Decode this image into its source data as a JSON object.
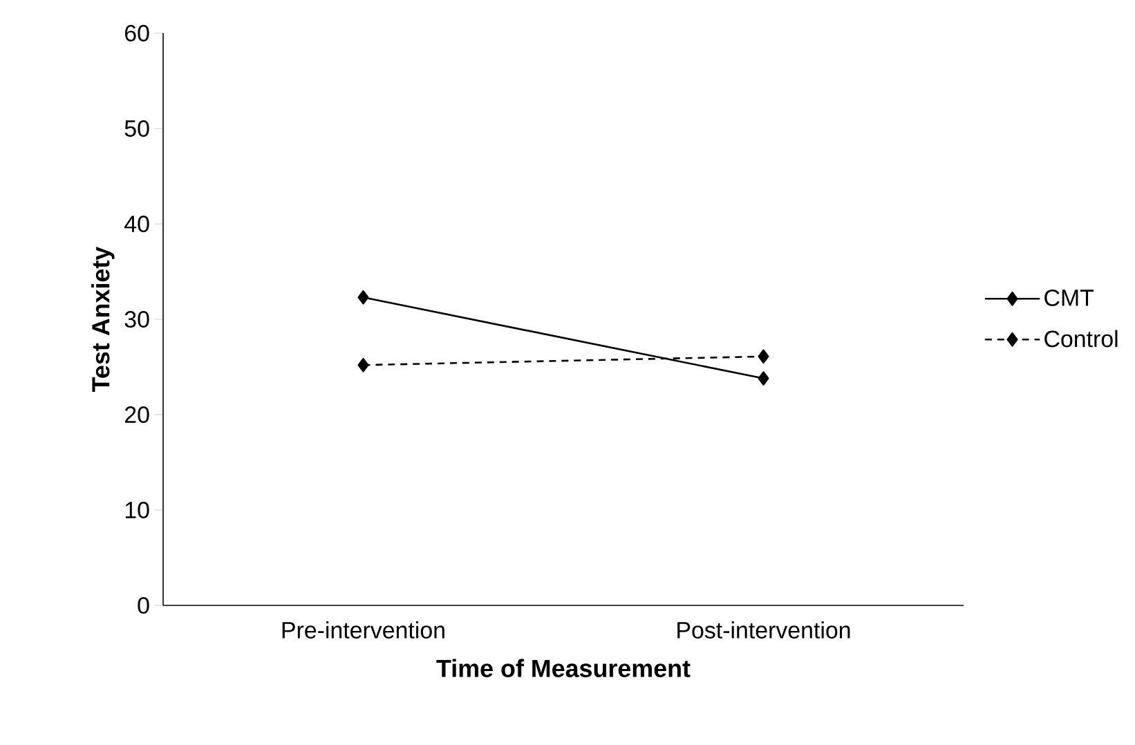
{
  "chart_data": {
    "type": "line",
    "xlabel": "Time of Measurement",
    "ylabel": "Test Anxiety",
    "categories": [
      "Pre-intervention",
      "Post-intervention"
    ],
    "series": [
      {
        "name": "CMT",
        "color": "#000000",
        "values": [
          32.3,
          23.8
        ],
        "line_style": "solid"
      },
      {
        "name": "Control",
        "color": "#000000",
        "values": [
          25.2,
          26.1
        ],
        "line_style": "dashed"
      }
    ],
    "ylim": [
      0,
      60
    ],
    "yticks": [
      0,
      10,
      20,
      30,
      40,
      50,
      60
    ],
    "marker": "diamond",
    "legend": "right",
    "grid": false
  }
}
